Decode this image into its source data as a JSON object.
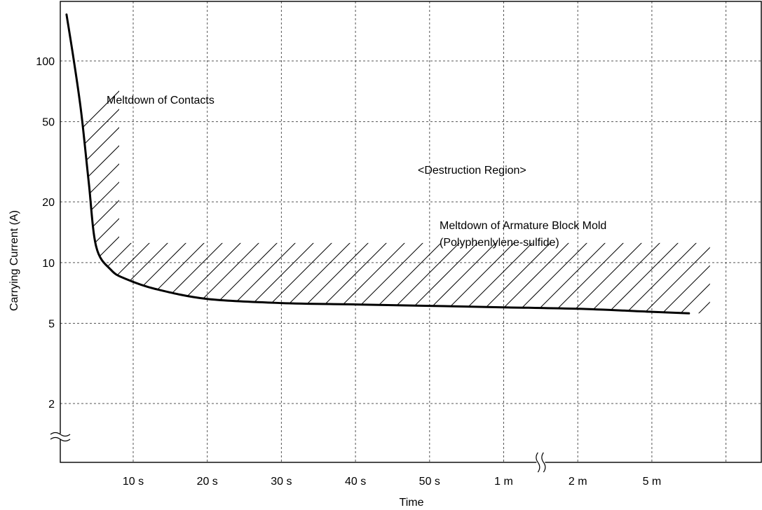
{
  "chart_data": {
    "type": "line",
    "title": "",
    "xlabel": "Time",
    "ylabel": "Carrying Current (A)",
    "y_scale": "log",
    "x_scale": "categorical-with-break",
    "categories": [
      "10 s",
      "20 s",
      "30 s",
      "40 s",
      "50 s",
      "1 m",
      "2 m",
      "5 m"
    ],
    "y_ticks": [
      {
        "label": "100",
        "value": 100
      },
      {
        "label": "50",
        "value": 50
      },
      {
        "label": "20",
        "value": 20
      },
      {
        "label": "10",
        "value": 10
      },
      {
        "label": "5",
        "value": 5
      },
      {
        "label": "2",
        "value": 2
      }
    ],
    "ylim": [
      1.3,
      220
    ],
    "axis_breaks": [
      "y-axis-below-2",
      "x-axis-between-1m-and-2m"
    ],
    "grid": true,
    "curve": {
      "x": [
        0.1,
        0.2,
        0.3,
        0.4,
        0.5,
        0.7,
        0.9,
        1.3,
        2.0,
        3.0,
        4.0,
        5.0,
        6.0,
        7.0,
        8.0,
        8.5
      ],
      "y": [
        170,
        100,
        55,
        25,
        12,
        9.2,
        8.3,
        7.4,
        6.6,
        6.3,
        6.2,
        6.1,
        6.0,
        5.9,
        5.7,
        5.6
      ]
    },
    "annotations": [
      {
        "text": "Meltdown of Contacts"
      },
      {
        "text": "<Destruction Region>"
      },
      {
        "text": "Meltdown of Armature Block Mold"
      },
      {
        "text": "(Polyphenlylene-sulfide)"
      }
    ]
  }
}
